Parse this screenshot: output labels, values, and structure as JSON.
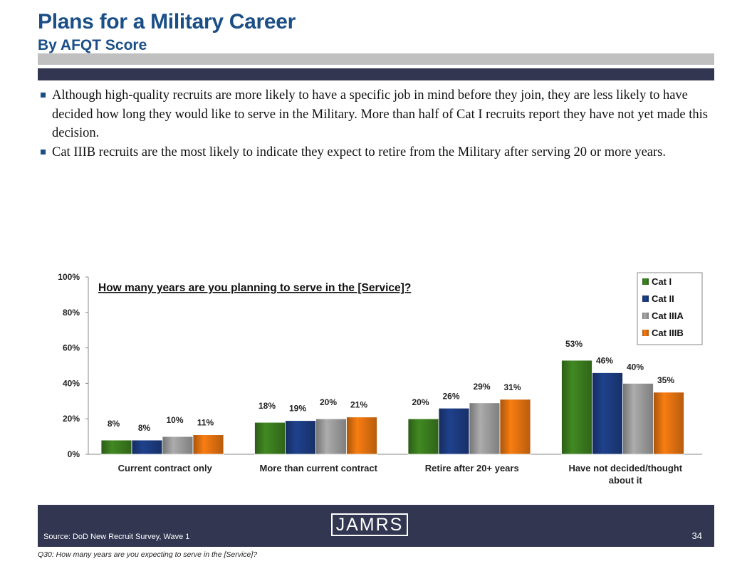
{
  "header": {
    "title": "Plans for a Military Career",
    "subtitle": "By AFQT Score"
  },
  "bullets": [
    "Although high-quality recruits are more likely to have a specific job in mind before they join, they are less likely to have decided how long they would like to serve in the Military.  More than half of Cat I recruits report they have not yet made this decision.",
    "Cat IIIB recruits are the most likely to indicate they expect to retire from the Military after serving 20 or more years."
  ],
  "chart_data": {
    "type": "bar",
    "title": "How many years are you planning to serve in the [Service]?",
    "categories": [
      "Current contract only",
      "More than current contract",
      "Retire after 20+ years",
      "Have not decided/thought about it"
    ],
    "series": [
      {
        "name": "Cat I",
        "values": [
          8,
          18,
          20,
          53
        ],
        "color": "#3a7a1e"
      },
      {
        "name": "Cat II",
        "values": [
          8,
          19,
          26,
          46
        ],
        "color": "#1c3a7e"
      },
      {
        "name": "Cat IIIA",
        "values": [
          10,
          20,
          29,
          40
        ],
        "color": "#9a9a9a"
      },
      {
        "name": "Cat IIIB",
        "values": [
          11,
          21,
          31,
          35
        ],
        "color": "#de7010"
      }
    ],
    "ylim": [
      0,
      100
    ],
    "yticks": [
      "0%",
      "20%",
      "40%",
      "60%",
      "80%",
      "100%"
    ],
    "value_suffix": "%",
    "legend_position": "top-right",
    "grid": false
  },
  "footer": {
    "logo_text": "JAMRS",
    "source": "Source:  DoD New Recruit Survey, Wave 1",
    "page_number": "34",
    "question_note": "Q30:  How many years are you expecting to serve in the [Service]?"
  }
}
